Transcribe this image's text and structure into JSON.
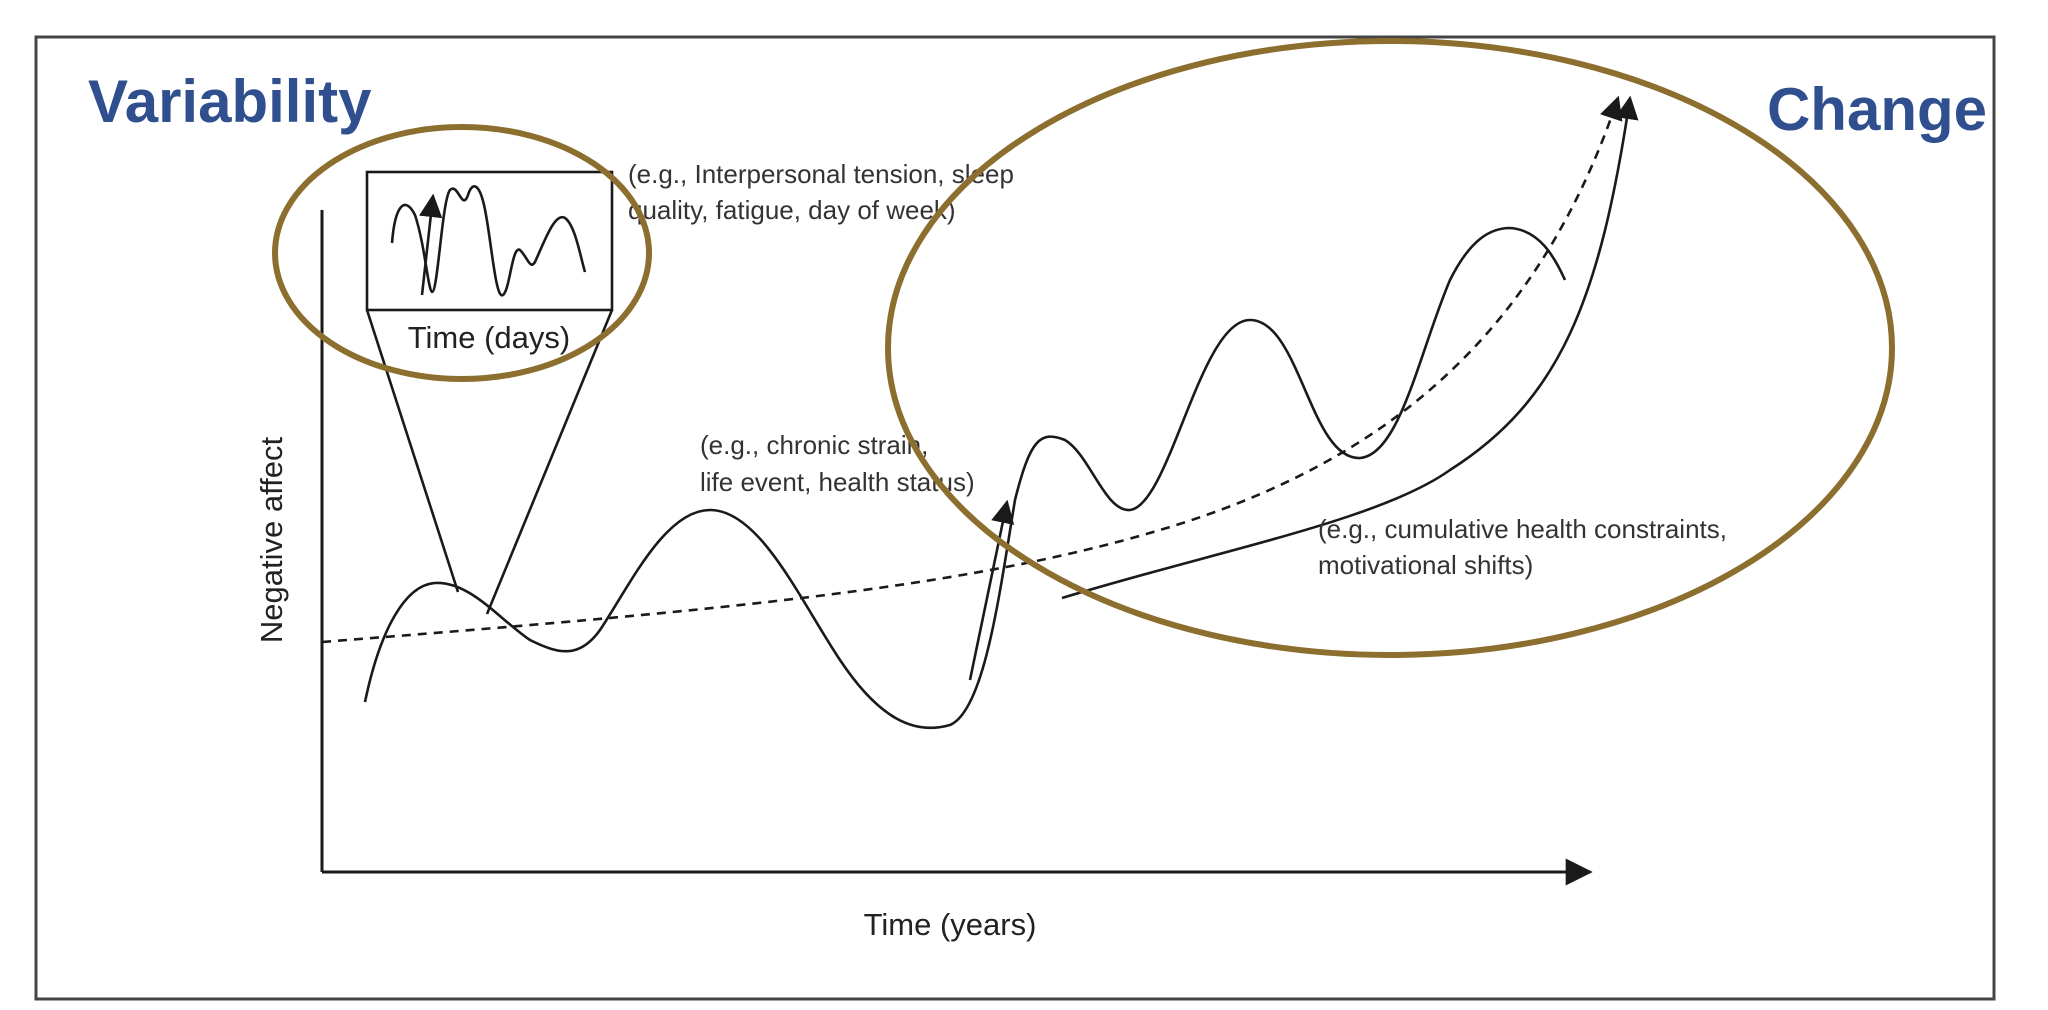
{
  "headings": {
    "variability": "Variability",
    "change": "Change"
  },
  "axes": {
    "y_label": "Negative affect",
    "x_label": "Time (years)"
  },
  "inset": {
    "label": "Time (days)"
  },
  "annotations": {
    "daily": [
      "(e.g., Interpersonal tension, sleep",
      "quality, fatigue, day of week)"
    ],
    "event": [
      "(e.g., chronic strain,",
      "life event, health status)"
    ],
    "cumulative": [
      "(e.g., cumulative health constraints,",
      "motivational shifts)"
    ]
  },
  "colors": {
    "heading": "#2f4f8f",
    "ring": "#8c6e2f",
    "line": "#1a1a1a",
    "frame": "#444444"
  }
}
